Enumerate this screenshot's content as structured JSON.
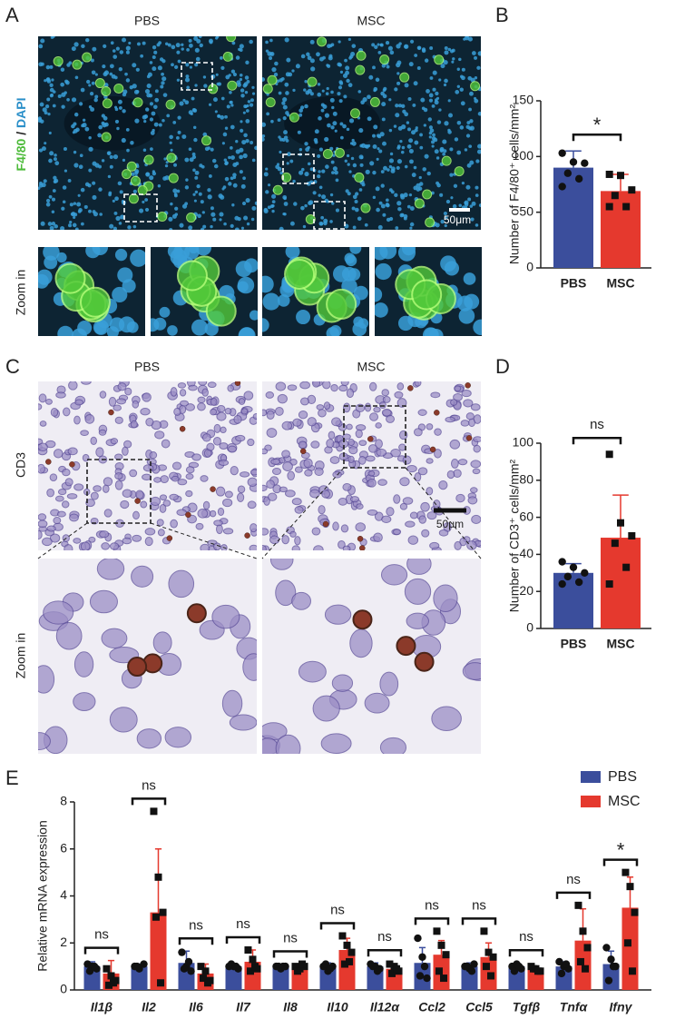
{
  "figure": {
    "panel_labels": [
      "A",
      "B",
      "C",
      "D",
      "E"
    ],
    "a_columns": [
      "PBS",
      "MSC"
    ],
    "a_stain": [
      "F4/80",
      " / ",
      "DAPI"
    ],
    "zoom_label": "Zoom in",
    "scale_bar": "50μm",
    "c_columns": [
      "PBS",
      "MSC"
    ],
    "c_stain": "CD3"
  },
  "chart_data": [
    {
      "type": "bar",
      "ylabel": "Number of F4/80⁺ cells/mm²",
      "categories": [
        "PBS",
        "MSC"
      ],
      "values": [
        90,
        69
      ],
      "errors": [
        15,
        15
      ],
      "colors": [
        "#3b4e9c",
        "#e5392e"
      ],
      "markers": [
        "circle",
        "square"
      ],
      "points": [
        [
          103,
          95,
          94,
          85,
          80,
          73
        ],
        [
          84,
          83,
          70,
          65,
          55,
          55
        ]
      ],
      "ylim": [
        0,
        150
      ],
      "yticks": [
        0,
        50,
        100,
        150
      ],
      "annotation": "*"
    },
    {
      "type": "bar",
      "ylabel": "Number of CD3⁺ cells/mm²",
      "categories": [
        "PBS",
        "MSC"
      ],
      "values": [
        30,
        49
      ],
      "errors": [
        5,
        23
      ],
      "colors": [
        "#3b4e9c",
        "#e5392e"
      ],
      "markers": [
        "circle",
        "square"
      ],
      "points": [
        [
          36,
          33,
          30,
          28,
          25,
          24
        ],
        [
          94,
          57,
          50,
          46,
          33,
          24
        ]
      ],
      "ylim": [
        0,
        100
      ],
      "yticks": [
        0,
        20,
        40,
        60,
        80,
        100
      ],
      "annotation": "ns"
    },
    {
      "type": "bar",
      "ylabel": "Relative mRNA expression",
      "categories": [
        "Il1β",
        "Il2",
        "Il6",
        "Il7",
        "Il8",
        "Il10",
        "Il12α",
        "Ccl2",
        "Ccl5",
        "Tgfβ",
        "Tnfα",
        "Ifnγ"
      ],
      "series": [
        {
          "name": "PBS",
          "color": "#3b4e9c",
          "marker": "circle",
          "values": [
            1.0,
            1.0,
            1.15,
            1.0,
            1.0,
            1.0,
            1.0,
            1.15,
            1.0,
            1.0,
            1.0,
            1.1
          ],
          "errors": [
            0.2,
            0.1,
            0.5,
            0.1,
            0.1,
            0.15,
            0.15,
            0.65,
            0.15,
            0.15,
            0.2,
            0.55
          ],
          "points": [
            [
              1.1,
              1.0,
              0.9,
              0.8,
              1.0
            ],
            [
              1.0,
              0.9,
              1.1,
              1.0
            ],
            [
              1.6,
              1.0,
              0.8,
              0.9,
              1.2
            ],
            [
              1.0,
              1.0,
              0.9,
              1.1,
              1.0
            ],
            [
              1.0,
              0.9,
              1.0,
              1.0,
              1.0
            ],
            [
              1.0,
              0.8,
              1.0,
              1.1,
              0.9
            ],
            [
              1.1,
              1.0,
              0.9,
              1.0,
              0.8
            ],
            [
              2.2,
              1.4,
              0.5,
              0.6,
              1.0
            ],
            [
              1.0,
              0.9,
              1.1,
              1.0,
              0.8
            ],
            [
              1.0,
              1.1,
              0.9,
              0.8,
              1.0
            ],
            [
              1.2,
              1.0,
              0.9,
              0.7,
              1.1
            ],
            [
              1.8,
              1.3,
              1.0,
              0.4,
              1.0
            ]
          ]
        },
        {
          "name": "MSC",
          "color": "#e5392e",
          "marker": "square",
          "values": [
            0.7,
            3.3,
            0.7,
            1.2,
            0.95,
            1.7,
            0.9,
            1.5,
            1.4,
            0.9,
            2.1,
            3.5
          ],
          "errors": [
            0.55,
            2.7,
            0.4,
            0.5,
            0.1,
            0.5,
            0.2,
            0.6,
            0.6,
            0.1,
            1.35,
            1.3
          ],
          "points": [
            [
              0.9,
              0.6,
              0.4,
              0.2,
              0.3
            ],
            [
              7.6,
              4.8,
              3.3,
              3.1,
              0.3
            ],
            [
              1.0,
              0.8,
              0.4,
              0.5,
              0.3
            ],
            [
              1.7,
              1.3,
              0.9,
              0.8,
              1.0
            ],
            [
              1.0,
              0.9,
              1.0,
              0.8,
              1.1
            ],
            [
              2.3,
              1.9,
              1.6,
              1.1,
              1.2
            ],
            [
              1.1,
              1.0,
              0.8,
              0.7,
              0.9
            ],
            [
              2.5,
              1.9,
              1.5,
              0.8,
              0.5
            ],
            [
              2.5,
              1.6,
              1.4,
              1.0,
              0.6
            ],
            [
              1.0,
              0.9,
              0.8,
              0.9,
              0.8
            ],
            [
              3.6,
              2.5,
              1.8,
              1.2,
              0.9
            ],
            [
              5.0,
              4.4,
              3.3,
              2.0,
              0.8
            ]
          ]
        }
      ],
      "annotations": [
        "ns",
        "ns",
        "ns",
        "ns",
        "ns",
        "ns",
        "ns",
        "ns",
        "ns",
        "ns",
        "ns",
        "*"
      ],
      "ylim": [
        0,
        8
      ],
      "yticks": [
        0,
        2,
        4,
        6,
        8
      ],
      "legend": "top-right"
    }
  ]
}
